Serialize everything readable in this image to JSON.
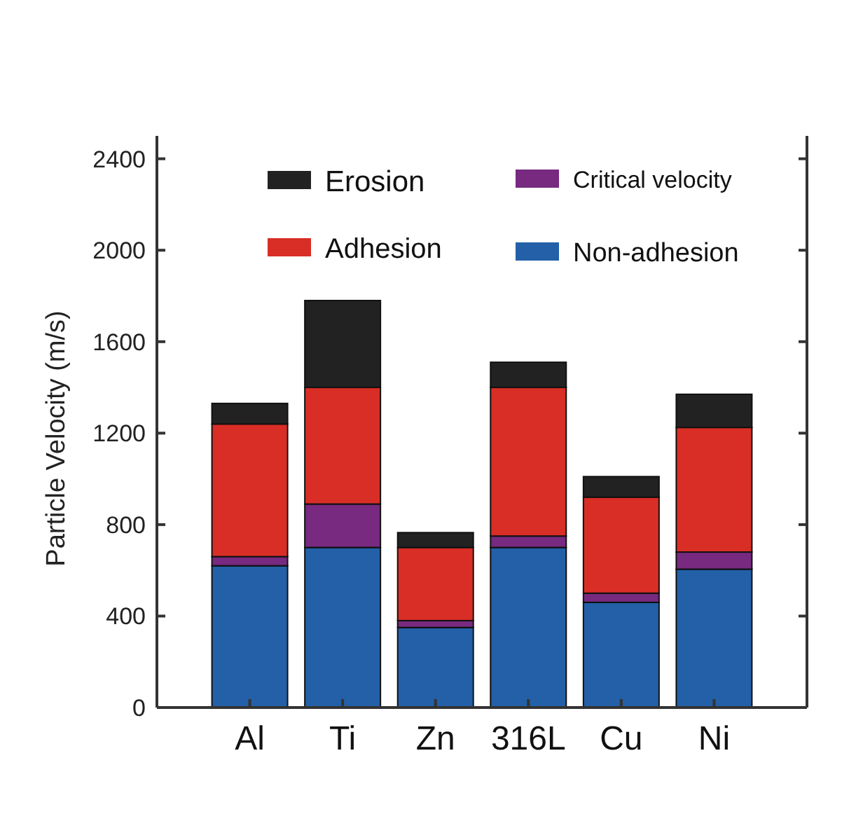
{
  "chart_data": {
    "type": "bar",
    "stacked": true,
    "ylabel": "Particle Velocity (m/s)",
    "categories": [
      "Al",
      "Ti",
      "Zn",
      "316L",
      "Cu",
      "Ni"
    ],
    "series": [
      {
        "name": "Non-adhesion",
        "color": "#2360a8",
        "values": [
          620,
          700,
          350,
          700,
          460,
          605
        ]
      },
      {
        "name": "Critical velocity",
        "color": "#772a80",
        "values": [
          40,
          190,
          30,
          50,
          40,
          75
        ]
      },
      {
        "name": "Adhesion",
        "color": "#d92e26",
        "values": [
          580,
          510,
          320,
          650,
          420,
          545
        ]
      },
      {
        "name": "Erosion",
        "color": "#222222",
        "values": [
          90,
          380,
          65,
          110,
          90,
          145
        ]
      }
    ],
    "ylim": [
      0,
      2500
    ],
    "yticks": [
      0,
      400,
      800,
      1200,
      1600,
      2000,
      2400
    ],
    "legend": "top",
    "grid": false
  }
}
